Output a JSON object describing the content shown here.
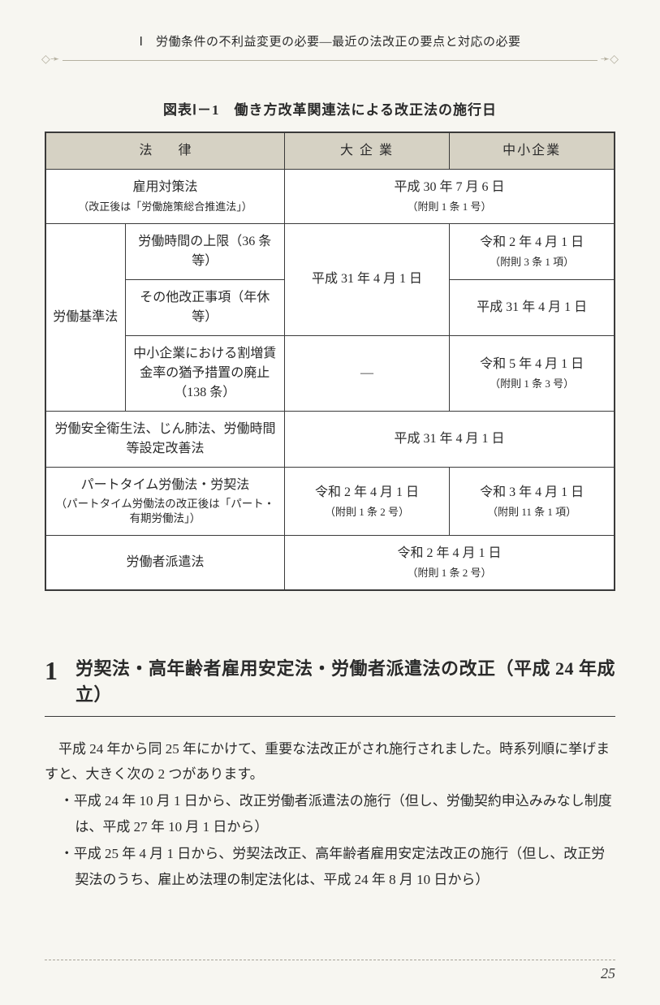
{
  "header": {
    "running_head": "Ⅰ　労働条件の不利益変更の必要―最近の法改正の要点と対応の必要"
  },
  "table": {
    "title": "図表Ⅰ－1　働き方改革関連法による改正法の施行日",
    "type": "table",
    "columns": {
      "law": "法　律",
      "large": "大 企 業",
      "sme": "中小企業"
    },
    "rows": {
      "r1": {
        "law_main": "雇用対策法",
        "law_sub": "（改正後は「労働施策総合推進法」）",
        "merged_main": "平成 30 年 7 月 6 日",
        "merged_sub": "（附則 1 条 1 号）"
      },
      "r2": {
        "group": "労働基準法",
        "a_law": "労働時間の上限（36 条等）",
        "a_large": "平成 31 年 4 月 1 日",
        "a_sme_main": "令和 2 年 4 月 1 日",
        "a_sme_sub": "（附則 3 条 1 項）",
        "b_law": "その他改正事項（年休等）",
        "b_sme": "平成 31 年 4 月 1 日",
        "c_law": "中小企業における割増賃金率の猶予措置の廃止（138 条）",
        "c_large": "―",
        "c_sme_main": "令和 5 年 4 月 1 日",
        "c_sme_sub": "（附則 1 条 3 号）"
      },
      "r3": {
        "law": "労働安全衛生法、じん肺法、労働時間等設定改善法",
        "merged": "平成 31 年 4 月 1 日"
      },
      "r4": {
        "law_main": "パートタイム労働法・労契法",
        "law_sub": "（パートタイム労働法の改正後は「パート・有期労働法」）",
        "large_main": "令和 2 年 4 月 1 日",
        "large_sub": "（附則 1 条 2 号）",
        "sme_main": "令和 3 年 4 月 1 日",
        "sme_sub": "（附則 11 条 1 項）"
      },
      "r5": {
        "law": "労働者派遣法",
        "merged_main": "令和 2 年 4 月 1 日",
        "merged_sub": "（附則 1 条 2 号）"
      }
    }
  },
  "section": {
    "number": "1",
    "title": "労契法・高年齢者雇用安定法・労働者派遣法の改正（平成 24 年成立）",
    "p1": "平成 24 年から同 25 年にかけて、重要な法改正がされ施行されました。時系列順に挙げますと、大きく次の 2 つがあります。",
    "bullet1": "・平成 24 年 10 月 1 日から、改正労働者派遣法の施行（但し、労働契約申込みみなし制度は、平成 27 年 10 月 1 日から）",
    "bullet2": "・平成 25 年 4 月 1 日から、労契法改正、高年齢者雇用安定法改正の施行（但し、改正労契法のうち、雇止め法理の制定法化は、平成 24 年 8 月 10 日から）"
  },
  "page_number": "25"
}
